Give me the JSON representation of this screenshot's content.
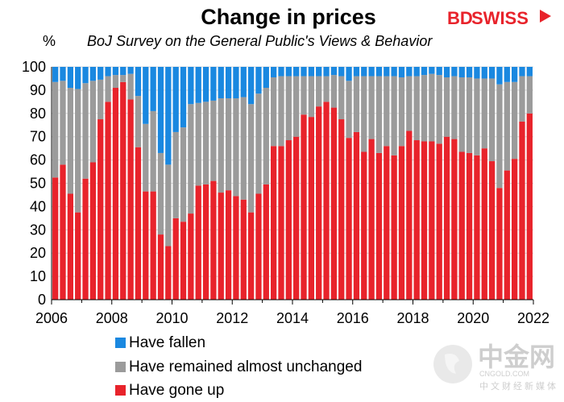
{
  "chart_data": {
    "type": "bar",
    "stacked": true,
    "title": "Change in prices",
    "subtitle": "BoJ Survey on the General Public's Views & Behavior",
    "ylabel": "%",
    "ylim": [
      0,
      100
    ],
    "yticks": [
      0,
      10,
      20,
      30,
      40,
      50,
      60,
      70,
      80,
      90,
      100
    ],
    "xlim": [
      2006,
      2022
    ],
    "xticks": [
      "2006",
      "2008",
      "2010",
      "2012",
      "2014",
      "2016",
      "2018",
      "2020",
      "2022"
    ],
    "x_start": 2006.25,
    "x_step": 0.25,
    "series": [
      {
        "name": "Have gone up",
        "color": "#e8232b",
        "values": [
          52.5,
          58,
          45.5,
          37.5,
          52,
          59,
          77.5,
          85,
          91,
          93.5,
          86,
          65.5,
          46.5,
          46.5,
          28,
          23,
          35,
          33.5,
          37,
          49,
          49.5,
          51,
          46,
          47,
          44.5,
          43,
          37.5,
          45.5,
          49.5,
          66,
          66,
          68.5,
          70,
          79.5,
          78.5,
          83,
          85,
          82.5,
          77.5,
          69.5,
          72,
          63.5,
          69,
          63,
          66,
          62,
          66,
          72.5,
          68.5,
          68,
          68,
          67,
          70,
          69,
          63.5,
          63,
          62,
          65,
          59.5,
          48,
          55.5,
          60.5,
          76.5,
          80
        ]
      },
      {
        "name": "Have remained almost unchanged",
        "color": "#9b9b9b",
        "values": [
          41,
          36,
          45.5,
          53,
          41,
          35,
          17,
          11,
          5.5,
          3,
          11,
          22,
          29,
          34.5,
          35,
          35,
          37,
          40.5,
          47,
          35.5,
          35.5,
          34.5,
          40.5,
          39.5,
          42,
          44,
          46.5,
          43,
          41.5,
          29.5,
          30,
          27.5,
          26,
          16.5,
          17.5,
          13,
          11,
          14,
          18.5,
          24.5,
          24,
          32.5,
          27,
          33,
          30,
          34,
          29.5,
          23.5,
          27.5,
          28.5,
          29,
          29.5,
          25.5,
          27,
          32,
          32.5,
          33,
          30,
          35.5,
          44.5,
          38,
          33,
          19.5,
          16
        ]
      },
      {
        "name": "Have fallen",
        "color": "#1a88e0",
        "values": [
          6.5,
          6,
          9,
          9.5,
          7,
          6,
          5.5,
          4,
          3.5,
          3.5,
          3,
          12.5,
          24.5,
          19,
          37,
          42,
          28,
          26,
          16,
          15.5,
          15,
          14.5,
          13.5,
          13.5,
          13.5,
          13,
          16,
          11.5,
          9,
          4.5,
          4,
          4,
          4,
          4,
          4,
          4,
          4,
          3.5,
          4,
          6,
          4,
          4,
          4,
          4,
          4,
          4,
          4.5,
          4,
          4,
          3.5,
          3,
          3.5,
          4.5,
          4,
          4.5,
          4.5,
          5,
          5,
          5,
          7.5,
          6.5,
          6.5,
          4,
          4
        ]
      }
    ]
  },
  "legend": [
    {
      "label": "Have fallen",
      "color": "#1a88e0"
    },
    {
      "label": "Have remained almost unchanged",
      "color": "#9b9b9b"
    },
    {
      "label": "Have gone up",
      "color": "#e8232b"
    }
  ],
  "logo": {
    "part1": "BD",
    "part2": "SWISS"
  },
  "watermark": {
    "cn": "中金网",
    "url": "CNGOLD.COM",
    "sub": "中文财经新媒体"
  },
  "colors": {
    "grid": "#d9d9d9",
    "axis": "#000000",
    "bar_outline": "#ffffff"
  }
}
